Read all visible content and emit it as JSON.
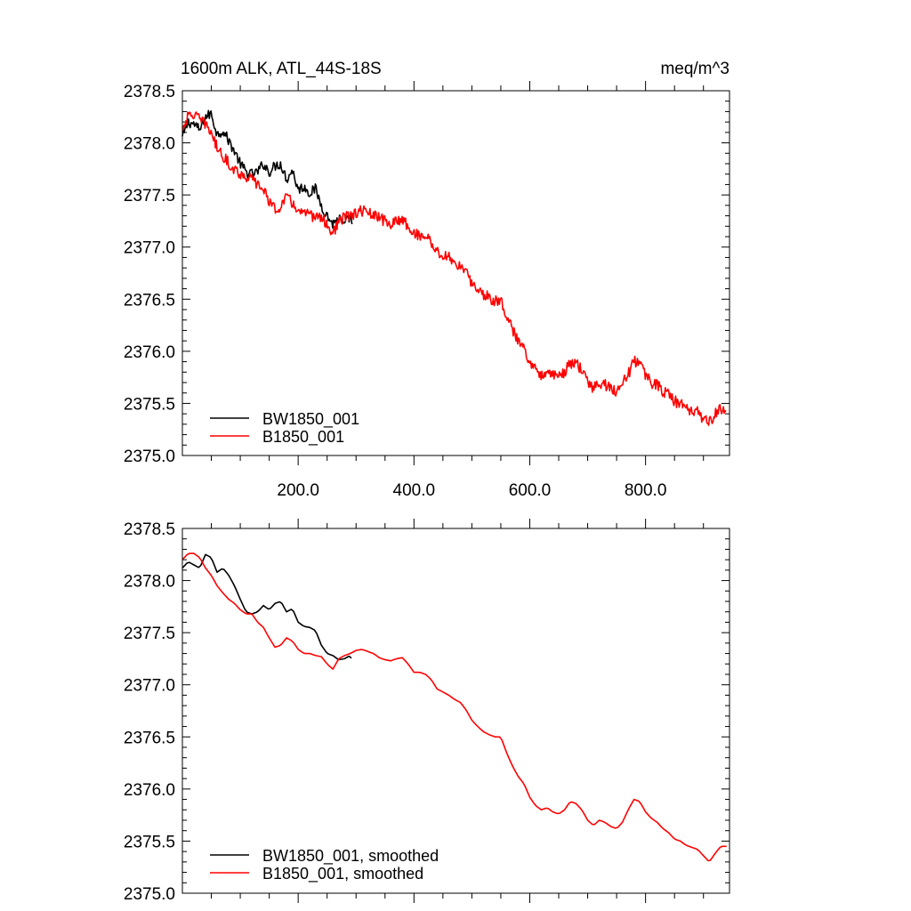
{
  "chart_data": [
    {
      "type": "line",
      "title_left": "1600m ALK, ATL_44S-18S",
      "title_right": "meq/m^3",
      "xlim": [
        0,
        945
      ],
      "ylim": [
        2375.0,
        2378.5
      ],
      "x_ticks": [
        200,
        400,
        600,
        800
      ],
      "x_tick_labels": [
        "200.0",
        "400.0",
        "600.0",
        "800.0"
      ],
      "y_ticks": [
        2375.0,
        2375.5,
        2376.0,
        2376.5,
        2377.0,
        2377.5,
        2378.0,
        2378.5
      ],
      "y_tick_labels": [
        "2375.0",
        "2375.5",
        "2376.0",
        "2376.5",
        "2377.0",
        "2377.5",
        "2378.0",
        "2378.5"
      ],
      "legend_position": "bottom-left",
      "series": [
        {
          "name": "BW1850_001",
          "color": "#000000",
          "x": [
            0,
            10,
            20,
            30,
            40,
            50,
            60,
            70,
            80,
            90,
            100,
            110,
            120,
            130,
            140,
            150,
            160,
            170,
            180,
            190,
            200,
            210,
            220,
            230,
            240,
            250,
            260,
            270,
            280,
            290,
            295
          ],
          "values": [
            2378.05,
            2378.2,
            2378.18,
            2378.12,
            2378.25,
            2378.28,
            2378.08,
            2378.12,
            2378.02,
            2377.92,
            2377.8,
            2377.72,
            2377.7,
            2377.72,
            2377.8,
            2377.72,
            2377.78,
            2377.8,
            2377.65,
            2377.74,
            2377.55,
            2377.58,
            2377.52,
            2377.56,
            2377.4,
            2377.3,
            2377.22,
            2377.28,
            2377.2,
            2377.3,
            2377.2
          ],
          "noise": 0.05
        },
        {
          "name": "B1850_001",
          "color": "#ff0000",
          "x": [
            0,
            10,
            20,
            30,
            40,
            50,
            60,
            70,
            80,
            90,
            100,
            110,
            120,
            130,
            140,
            150,
            160,
            170,
            180,
            190,
            200,
            210,
            220,
            230,
            240,
            250,
            260,
            270,
            280,
            290,
            300,
            310,
            320,
            330,
            340,
            350,
            360,
            370,
            380,
            390,
            400,
            410,
            420,
            430,
            440,
            450,
            460,
            470,
            480,
            490,
            500,
            510,
            520,
            530,
            540,
            550,
            560,
            570,
            580,
            590,
            600,
            610,
            620,
            630,
            640,
            650,
            660,
            670,
            680,
            690,
            700,
            710,
            720,
            730,
            740,
            750,
            760,
            770,
            780,
            790,
            800,
            810,
            820,
            830,
            840,
            850,
            860,
            870,
            880,
            890,
            900,
            910,
            920,
            930,
            940
          ],
          "values": [
            2378.15,
            2378.25,
            2378.28,
            2378.22,
            2378.18,
            2378.1,
            2377.95,
            2377.88,
            2377.8,
            2377.75,
            2377.7,
            2377.68,
            2377.65,
            2377.6,
            2377.55,
            2377.45,
            2377.35,
            2377.4,
            2377.48,
            2377.42,
            2377.35,
            2377.32,
            2377.3,
            2377.3,
            2377.28,
            2377.22,
            2377.12,
            2377.25,
            2377.28,
            2377.3,
            2377.32,
            2377.35,
            2377.33,
            2377.3,
            2377.28,
            2377.25,
            2377.22,
            2377.24,
            2377.28,
            2377.2,
            2377.12,
            2377.12,
            2377.1,
            2377.05,
            2376.95,
            2376.92,
            2376.9,
            2376.85,
            2376.82,
            2376.75,
            2376.65,
            2376.6,
            2376.55,
            2376.52,
            2376.48,
            2376.5,
            2376.35,
            2376.2,
            2376.1,
            2376.05,
            2375.9,
            2375.82,
            2375.78,
            2375.82,
            2375.78,
            2375.75,
            2375.8,
            2375.88,
            2375.88,
            2375.82,
            2375.7,
            2375.65,
            2375.7,
            2375.68,
            2375.64,
            2375.62,
            2375.7,
            2375.78,
            2375.9,
            2375.9,
            2375.78,
            2375.7,
            2375.68,
            2375.62,
            2375.58,
            2375.52,
            2375.5,
            2375.45,
            2375.42,
            2375.42,
            2375.35,
            2375.32,
            2375.4,
            2375.45,
            2375.45
          ],
          "noise": 0.055
        }
      ]
    },
    {
      "type": "line",
      "xlim": [
        0,
        945
      ],
      "ylim": [
        2375.0,
        2378.5
      ],
      "y_ticks": [
        2375.0,
        2375.5,
        2376.0,
        2376.5,
        2377.0,
        2377.5,
        2378.0,
        2378.5
      ],
      "y_tick_labels": [
        "2375.0",
        "2375.5",
        "2376.0",
        "2376.5",
        "2377.0",
        "2377.5",
        "2378.0",
        "2378.5"
      ],
      "legend_position": "bottom-left",
      "series": [
        {
          "name": "BW1850_001, smoothed",
          "color": "#000000",
          "x": [
            0,
            10,
            20,
            30,
            40,
            50,
            60,
            70,
            80,
            90,
            100,
            110,
            120,
            130,
            140,
            150,
            160,
            170,
            180,
            190,
            200,
            210,
            220,
            230,
            240,
            250,
            260,
            270,
            280,
            290,
            295
          ],
          "values": [
            2378.12,
            2378.18,
            2378.15,
            2378.12,
            2378.25,
            2378.22,
            2378.08,
            2378.12,
            2378.05,
            2377.95,
            2377.82,
            2377.7,
            2377.68,
            2377.7,
            2377.76,
            2377.72,
            2377.78,
            2377.8,
            2377.7,
            2377.73,
            2377.6,
            2377.56,
            2377.55,
            2377.52,
            2377.38,
            2377.3,
            2377.28,
            2377.24,
            2377.25,
            2377.28,
            2377.22
          ],
          "noise": 0.0
        },
        {
          "name": "B1850_001, smoothed",
          "color": "#ff0000",
          "x": [
            0,
            10,
            20,
            30,
            40,
            50,
            60,
            70,
            80,
            90,
            100,
            110,
            120,
            130,
            140,
            150,
            160,
            170,
            180,
            190,
            200,
            210,
            220,
            230,
            240,
            250,
            260,
            270,
            280,
            290,
            300,
            310,
            320,
            330,
            340,
            350,
            360,
            370,
            380,
            390,
            400,
            410,
            420,
            430,
            440,
            450,
            460,
            470,
            480,
            490,
            500,
            510,
            520,
            530,
            540,
            550,
            560,
            570,
            580,
            590,
            600,
            610,
            620,
            630,
            640,
            650,
            660,
            670,
            680,
            690,
            700,
            710,
            720,
            730,
            740,
            750,
            760,
            770,
            780,
            790,
            800,
            810,
            820,
            830,
            840,
            850,
            860,
            870,
            880,
            890,
            900,
            910,
            920,
            930,
            940
          ],
          "values": [
            2378.2,
            2378.26,
            2378.26,
            2378.22,
            2378.12,
            2378.05,
            2377.95,
            2377.88,
            2377.82,
            2377.78,
            2377.72,
            2377.68,
            2377.68,
            2377.6,
            2377.55,
            2377.45,
            2377.36,
            2377.38,
            2377.45,
            2377.42,
            2377.34,
            2377.3,
            2377.3,
            2377.28,
            2377.27,
            2377.2,
            2377.15,
            2377.25,
            2377.28,
            2377.3,
            2377.33,
            2377.34,
            2377.32,
            2377.3,
            2377.26,
            2377.24,
            2377.23,
            2377.25,
            2377.26,
            2377.2,
            2377.12,
            2377.12,
            2377.1,
            2377.05,
            2376.96,
            2376.93,
            2376.9,
            2376.86,
            2376.83,
            2376.76,
            2376.66,
            2376.6,
            2376.55,
            2376.52,
            2376.5,
            2376.5,
            2376.35,
            2376.22,
            2376.12,
            2376.05,
            2375.92,
            2375.84,
            2375.8,
            2375.82,
            2375.78,
            2375.76,
            2375.8,
            2375.88,
            2375.86,
            2375.8,
            2375.7,
            2375.65,
            2375.7,
            2375.68,
            2375.64,
            2375.62,
            2375.68,
            2375.8,
            2375.9,
            2375.88,
            2375.78,
            2375.72,
            2375.68,
            2375.62,
            2375.58,
            2375.52,
            2375.5,
            2375.46,
            2375.44,
            2375.42,
            2375.36,
            2375.3,
            2375.38,
            2375.45,
            2375.45
          ],
          "noise": 0.0
        }
      ]
    }
  ]
}
